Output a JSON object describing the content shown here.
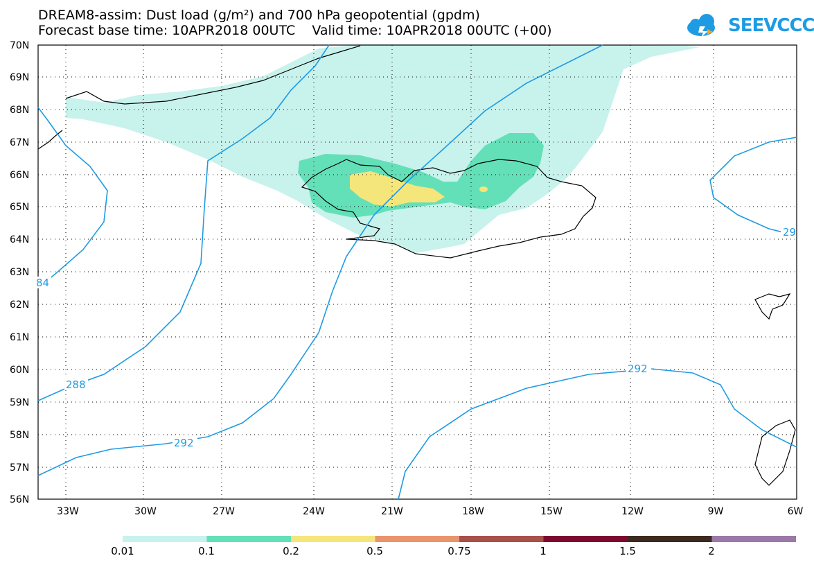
{
  "title_line1": "DREAM8-assim: Dust load (g/m²) and 700 hPa geopotential (gpdm)",
  "title_line2": "Forecast base time: 10APR2018 00UTC    Valid time: 10APR2018 00UTC (+00)",
  "logo_text": "SEEVCCC",
  "lat_labels": [
    "70N",
    "69N",
    "68N",
    "67N",
    "66N",
    "65N",
    "64N",
    "63N",
    "62N",
    "61N",
    "60N",
    "59N",
    "58N",
    "57N",
    "56N"
  ],
  "lon_labels": [
    "33W",
    "30W",
    "27W",
    "24W",
    "21W",
    "18W",
    "15W",
    "12W",
    "9W",
    "6W"
  ],
  "contour_labels": [
    "84",
    "288",
    "292",
    "292",
    "29"
  ],
  "colorbar": {
    "labels": [
      "0.01",
      "0.1",
      "0.2",
      "0.5",
      "0.75",
      "1",
      "1.5",
      "2"
    ],
    "colors": [
      "#c8f2ec",
      "#64e0b8",
      "#f5e67c",
      "#e8956e",
      "#a8504a",
      "#7c0a30",
      "#3c2a1e",
      "#9c78a8"
    ]
  },
  "colors": {
    "dust_001": "#c8f2ec",
    "dust_01": "#64e0b8",
    "dust_02": "#f5e67c",
    "contour": "#1e9be3"
  }
}
